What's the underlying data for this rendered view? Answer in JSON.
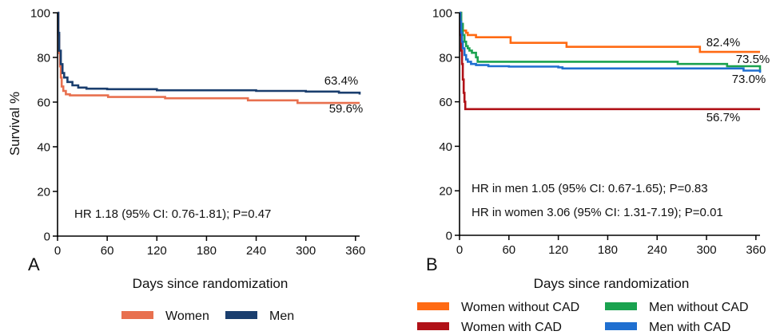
{
  "chart_data": [
    {
      "type": "line",
      "panel_label": "A",
      "xlabel": "Days since randomization",
      "ylabel": "Survival %",
      "xlim": [
        0,
        365
      ],
      "ylim": [
        0,
        100
      ],
      "xticks": [
        0,
        60,
        120,
        180,
        240,
        300,
        360
      ],
      "yticks": [
        0,
        20,
        40,
        60,
        80,
        100
      ],
      "grid": false,
      "legend_position": "bottom",
      "annotation": "HR 1.18 (95% CI: 0.76-1.81); P=0.47",
      "series": [
        {
          "name": "Women",
          "color": "#e8704f",
          "end_label": "59.6%",
          "x": [
            0,
            1,
            2,
            3,
            4,
            5,
            7,
            10,
            15,
            60,
            61,
            128,
            130,
            228,
            230,
            288,
            290,
            365
          ],
          "y": [
            100,
            90,
            82,
            76,
            71,
            67,
            65,
            63.5,
            63,
            63,
            62.3,
            62.3,
            61.7,
            61.7,
            60.8,
            60.8,
            59.6,
            59.6
          ]
        },
        {
          "name": "Men",
          "color": "#1a3e6e",
          "end_label": "63.4%",
          "x": [
            0,
            1,
            2,
            4,
            6,
            8,
            12,
            18,
            25,
            35,
            60,
            120,
            240,
            300,
            340,
            365
          ],
          "y": [
            100,
            91,
            83,
            77,
            73,
            71,
            69,
            67.5,
            66.5,
            66,
            65.8,
            65.3,
            65,
            64.7,
            64.2,
            63.4
          ]
        }
      ]
    },
    {
      "type": "line",
      "panel_label": "B",
      "xlabel": "Days since randomization",
      "ylabel": "",
      "xlim": [
        0,
        365
      ],
      "ylim": [
        0,
        100
      ],
      "xticks": [
        0,
        60,
        120,
        180,
        240,
        300,
        360
      ],
      "yticks": [
        0,
        20,
        40,
        60,
        80,
        100
      ],
      "grid": false,
      "legend_position": "bottom",
      "annotations": [
        "HR in men 1.05 (95% CI: 0.67-1.65); P=0.83",
        "HR in women 3.06 (95% CI: 1.31-7.19); P=0.01"
      ],
      "series": [
        {
          "name": "Women without CAD",
          "color": "#ff6a13",
          "end_label": "82.4%",
          "x": [
            0,
            2,
            4,
            8,
            10,
            20,
            60,
            62,
            128,
            130,
            290,
            292,
            365
          ],
          "y": [
            100,
            95,
            92,
            91,
            90,
            89,
            89,
            86.5,
            86.5,
            84.7,
            84.7,
            82.4,
            82.4
          ]
        },
        {
          "name": "Women with CAD",
          "color": "#b01117",
          "end_label": "56.7%",
          "x": [
            0,
            1,
            2,
            3,
            4,
            5,
            6,
            7,
            365
          ],
          "y": [
            100,
            90,
            83,
            77,
            70,
            64,
            60,
            56.7,
            56.7
          ]
        },
        {
          "name": "Men without CAD",
          "color": "#1aa24f",
          "end_label": "73.5%",
          "x": [
            0,
            2,
            4,
            6,
            8,
            10,
            12,
            15,
            20,
            22,
            120,
            260,
            265,
            320,
            325,
            365
          ],
          "y": [
            100,
            95,
            90,
            87,
            85,
            84,
            83,
            82,
            80,
            78,
            78,
            78,
            77,
            77,
            76,
            73.5
          ]
        },
        {
          "name": "Men with  CAD",
          "color": "#1f6fd0",
          "end_label": "73.0%",
          "x": [
            0,
            1,
            2,
            3,
            4,
            6,
            8,
            10,
            14,
            20,
            35,
            60,
            120,
            125,
            300,
            345,
            365
          ],
          "y": [
            100,
            96,
            91,
            87,
            84,
            81,
            79,
            78,
            77,
            76.5,
            76,
            75.8,
            75.5,
            75,
            75,
            74,
            73.0
          ]
        }
      ]
    }
  ]
}
